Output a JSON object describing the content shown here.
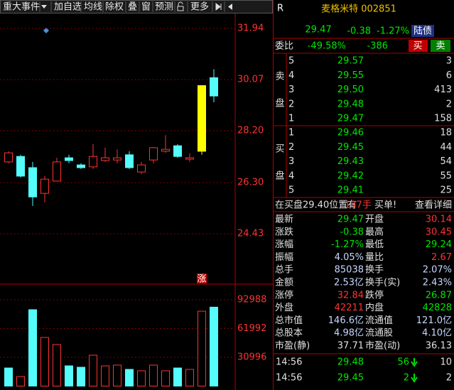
{
  "toolbar": {
    "items": [
      "重大事件",
      "加自选",
      "均线",
      "除权",
      "叠",
      "窗",
      "预测",
      "更多"
    ]
  },
  "chart_data": [
    {
      "type": "candlestick",
      "ylim": [
        22.59,
        32.98
      ],
      "yticks": [
        31.94,
        30.07,
        {
          "value": 28.2,
          "label": "28.20"
        },
        {
          "value": 26.3,
          "label": "26.30"
        },
        24.43
      ],
      "open": [
        27.06,
        27.26,
        26.85,
        25.91,
        26.36,
        27.21,
        26.95,
        26.88,
        27.11,
        27.13,
        27.32,
        26.69,
        27.13,
        27.45,
        27.65,
        27.16,
        27.45,
        30.14
      ],
      "high": [
        27.45,
        27.32,
        27.06,
        26.54,
        27.21,
        27.32,
        27.01,
        27.71,
        27.58,
        27.52,
        27.45,
        27.06,
        27.6,
        28.04,
        27.71,
        27.37,
        29.85,
        30.45
      ],
      "low": [
        27.01,
        26.49,
        25.45,
        25.58,
        26.36,
        27.01,
        26.8,
        26.8,
        27.06,
        27.01,
        26.8,
        26.62,
        27.01,
        27.39,
        27.21,
        27.06,
        27.32,
        29.24
      ],
      "close": [
        27.39,
        26.54,
        25.78,
        26.43,
        27.06,
        27.11,
        26.85,
        27.26,
        27.21,
        27.21,
        26.85,
        26.95,
        27.58,
        27.52,
        27.26,
        27.21,
        29.85,
        29.47
      ],
      "colors": [
        "#ff3232",
        "#54fcfc",
        "#54fcfc",
        "#ff3232",
        "#ff3232",
        "#54fcfc",
        "#54fcfc",
        "#ff3232",
        "#ff3232",
        "#ff3232",
        "#54fcfc",
        "#ff3232",
        "#ff3232",
        "#ff3232",
        "#54fcfc",
        "#ff3232",
        "#ffff00",
        "#54fcfc"
      ],
      "annotation": "涨"
    },
    {
      "type": "bar",
      "ylim": [
        0,
        109822
      ],
      "yticks": [
        92988,
        61992,
        30996
      ],
      "values": [
        19500,
        10300,
        82300,
        52400,
        44800,
        21800,
        20300,
        33300,
        21800,
        22600,
        18000,
        16500,
        22600,
        16500,
        19500,
        18000,
        80700,
        85038
      ],
      "colors": [
        "#54fcfc",
        "#ff3232",
        "#54fcfc",
        "#ff3232",
        "#ff3232",
        "#54fcfc",
        "#54fcfc",
        "#ff3232",
        "#ff3232",
        "#ff3232",
        "#54fcfc",
        "#ff3232",
        "#ff3232",
        "#ff3232",
        "#54fcfc",
        "#ff3232",
        "#ff3232",
        "#54fcfc"
      ]
    }
  ],
  "quote": {
    "flag": "R",
    "title": "麦格米特 002851",
    "price": "29.47",
    "change": "-0.38",
    "pct": "-1.27%",
    "tag": "陆债",
    "weibi_label": "委比",
    "weibi_pct": "-49.58%",
    "weibi_diff": "-386",
    "buy": "买",
    "sell": "卖"
  },
  "order_book": {
    "sell_chars": [
      "卖",
      "盘"
    ],
    "buy_chars": [
      "买",
      "盘"
    ],
    "price_color": "#00e600",
    "volume_color": "#e0e0e0",
    "asks": [
      [
        "5",
        "29.57",
        "3"
      ],
      [
        "4",
        "29.55",
        "6"
      ],
      [
        "3",
        "29.50",
        "413"
      ],
      [
        "2",
        "29.48",
        "2"
      ],
      [
        "1",
        "29.47",
        "158"
      ]
    ],
    "bids": [
      [
        "1",
        "29.46",
        "18"
      ],
      [
        "2",
        "29.45",
        "44"
      ],
      [
        "3",
        "29.43",
        "54"
      ],
      [
        "4",
        "29.42",
        "55"
      ],
      [
        "5",
        "29.41",
        "25"
      ]
    ]
  },
  "notice": {
    "text": "在买盘29.40位置有",
    "amount": "137手",
    "suffix": "买单!",
    "link": "查看详细"
  },
  "stats": [
    {
      "label": "最新",
      "value": "29.47",
      "color": "#00e600"
    },
    {
      "label": "开盘",
      "value": "30.14",
      "color": "#ff3232"
    },
    {
      "label": "涨跌",
      "value": "-0.38",
      "color": "#00e600"
    },
    {
      "label": "最高",
      "value": "30.45",
      "color": "#ff3232"
    },
    {
      "label": "涨幅",
      "value": "-1.27%",
      "color": "#00e600"
    },
    {
      "label": "最低",
      "value": "29.24",
      "color": "#00e600"
    },
    {
      "label": "振幅",
      "value": "4.05%",
      "color": "#c8d8ff"
    },
    {
      "label": "量比",
      "value": "2.67",
      "color": "#ff3232"
    },
    {
      "label": "总手",
      "value": "85038",
      "color": "#c8d8ff"
    },
    {
      "label": "换手",
      "value": "2.07%",
      "color": "#c8d8ff"
    },
    {
      "label": "金额",
      "value": "2.53亿",
      "color": "#c8d8ff"
    },
    {
      "label": "换手(实)",
      "value": "2.43%",
      "color": "#c8d8ff"
    },
    {
      "label": "涨停",
      "value": "32.84",
      "color": "#ff3232"
    },
    {
      "label": "跌停",
      "value": "26.87",
      "color": "#00e600"
    },
    {
      "label": "外盘",
      "value": "42211",
      "color": "#ff3232"
    },
    {
      "label": "内盘",
      "value": "42828",
      "color": "#00e600"
    },
    {
      "label": "总市值",
      "value": "146.6亿",
      "color": "#c8d8ff"
    },
    {
      "label": "流通值",
      "value": "121.0亿",
      "color": "#c8d8ff"
    },
    {
      "label": "总股本",
      "value": "4.98亿",
      "color": "#c8d8ff"
    },
    {
      "label": "流通股",
      "value": "4.10亿",
      "color": "#c8d8ff"
    },
    {
      "label": "市盈(静)",
      "value": "37.71",
      "color": "#e0e0e0"
    },
    {
      "label": "市盈(动)",
      "value": "36.13",
      "color": "#e0e0e0"
    }
  ],
  "trades": [
    {
      "time": "14:56",
      "price": "29.48",
      "volume": "56",
      "count": "10"
    },
    {
      "time": "14:56",
      "price": "29.45",
      "volume": "2",
      "count": "2"
    }
  ]
}
